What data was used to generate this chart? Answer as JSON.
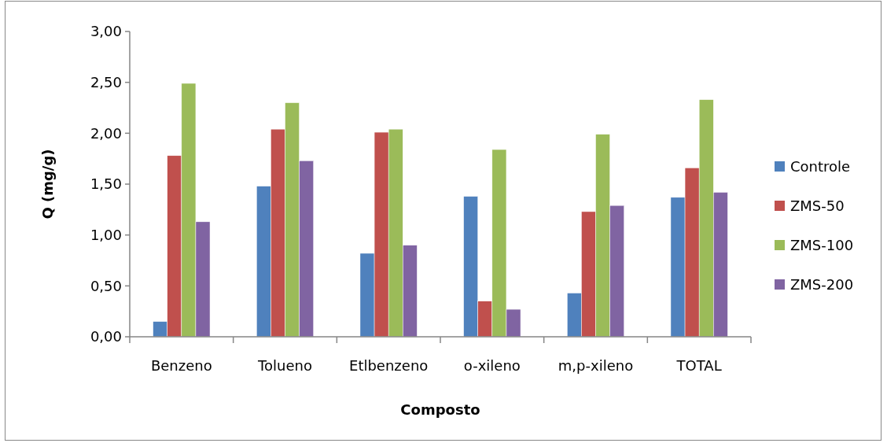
{
  "chart_data": {
    "type": "bar",
    "xlabel": "Composto",
    "ylabel": "Q (mg/g)",
    "categories": [
      "Benzeno",
      "Tolueno",
      "Etlbenzeno",
      "o-xileno",
      "m,p-xileno",
      "TOTAL"
    ],
    "series": [
      {
        "name": "Controle",
        "color": "#4f81bd",
        "values": [
          0.15,
          1.48,
          0.82,
          1.38,
          0.43,
          1.37
        ]
      },
      {
        "name": "ZMS-50",
        "color": "#c0504d",
        "values": [
          1.78,
          2.04,
          2.01,
          0.35,
          1.23,
          1.66
        ]
      },
      {
        "name": "ZMS-100",
        "color": "#9bbb59",
        "values": [
          2.49,
          2.3,
          2.04,
          1.84,
          1.99,
          2.33
        ]
      },
      {
        "name": "ZMS-200",
        "color": "#8064a2",
        "values": [
          1.13,
          1.73,
          0.9,
          0.27,
          1.29,
          1.42
        ]
      }
    ],
    "ylim": [
      0,
      3
    ],
    "yticks": [
      {
        "value": 0,
        "label": "0,00"
      },
      {
        "value": 0.5,
        "label": "0,50"
      },
      {
        "value": 1,
        "label": "1,00"
      },
      {
        "value": 1.5,
        "label": "1,50"
      },
      {
        "value": 2,
        "label": "2,00"
      },
      {
        "value": 2.5,
        "label": "2,50"
      },
      {
        "value": 3,
        "label": "3,00"
      }
    ],
    "legend": "right"
  }
}
